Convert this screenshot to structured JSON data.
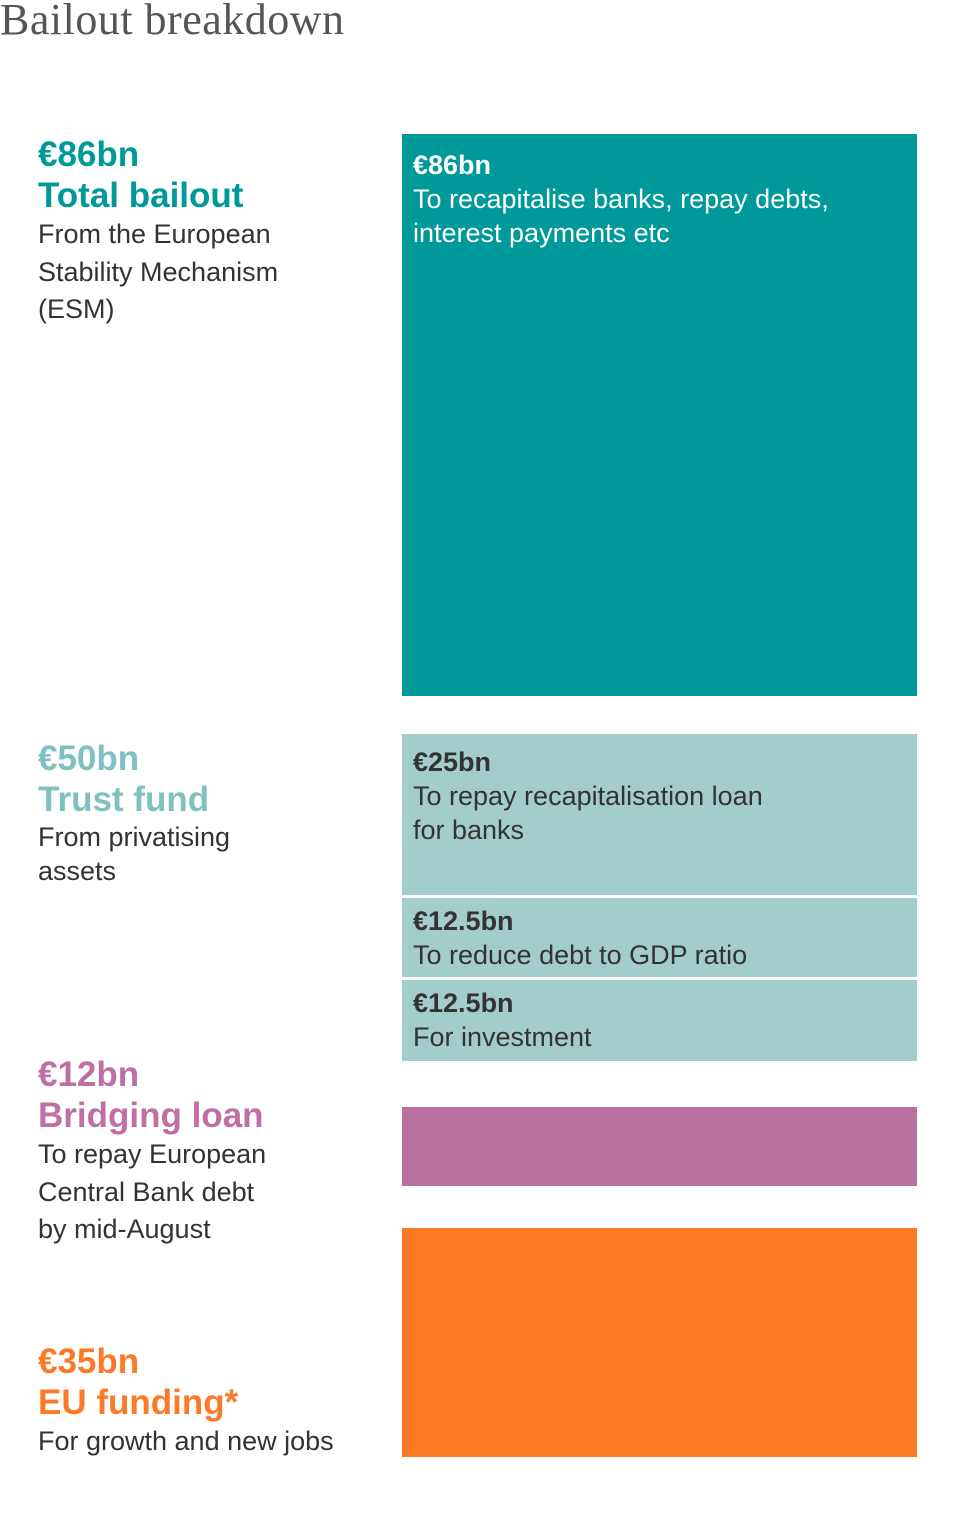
{
  "title": "Bailout breakdown",
  "colors": {
    "esm": "#009999",
    "trust": "#a2cdcb",
    "trust_text": "#7fc0c0",
    "bridging": "#b8719d",
    "bridging_text": "#c06fa6",
    "eu": "#fc7a26"
  },
  "groups": [
    {
      "amount": "€86bn",
      "name": "Total bailout",
      "desc": [
        "From the European",
        "Stability Mechanism",
        "(ESM)"
      ]
    },
    {
      "amount": "€50bn",
      "name": "Trust fund",
      "desc": [
        "From privatising",
        "assets"
      ]
    },
    {
      "amount": "€12bn",
      "name": "Bridging loan",
      "desc": [
        "To repay European",
        "Central Bank debt",
        "by mid-August"
      ]
    },
    {
      "amount": "€35bn",
      "name": "EU funding*",
      "desc": [
        "For growth and new jobs"
      ]
    }
  ],
  "blocks": [
    {
      "amount": "€86bn",
      "desc": [
        "To recapitalise banks, repay debts,",
        "interest payments etc"
      ]
    },
    {
      "amount": "€25bn",
      "desc": [
        "To repay recapitalisation loan",
        "for banks"
      ]
    },
    {
      "amount": "€12.5bn",
      "desc": [
        "To reduce debt to GDP ratio"
      ]
    },
    {
      "amount": "€12.5bn",
      "desc": [
        "For investment"
      ]
    },
    {
      "amount": "",
      "desc": []
    },
    {
      "amount": "",
      "desc": []
    }
  ],
  "chart_data": {
    "type": "bar",
    "title": "Bailout breakdown",
    "unit": "€bn",
    "categories": [
      "Total bailout",
      "Trust fund",
      "Bridging loan",
      "EU funding*"
    ],
    "values": [
      86,
      50,
      12,
      35
    ],
    "segments": [
      {
        "group": "Total bailout",
        "value": 86,
        "label": "To recapitalise banks, repay debts, interest payments etc"
      },
      {
        "group": "Trust fund",
        "value": 25,
        "label": "To repay recapitalisation loan for banks"
      },
      {
        "group": "Trust fund",
        "value": 12.5,
        "label": "To reduce debt to GDP ratio"
      },
      {
        "group": "Trust fund",
        "value": 12.5,
        "label": "For investment"
      },
      {
        "group": "Bridging loan",
        "value": 12,
        "label": ""
      },
      {
        "group": "EU funding*",
        "value": 35,
        "label": ""
      }
    ]
  }
}
